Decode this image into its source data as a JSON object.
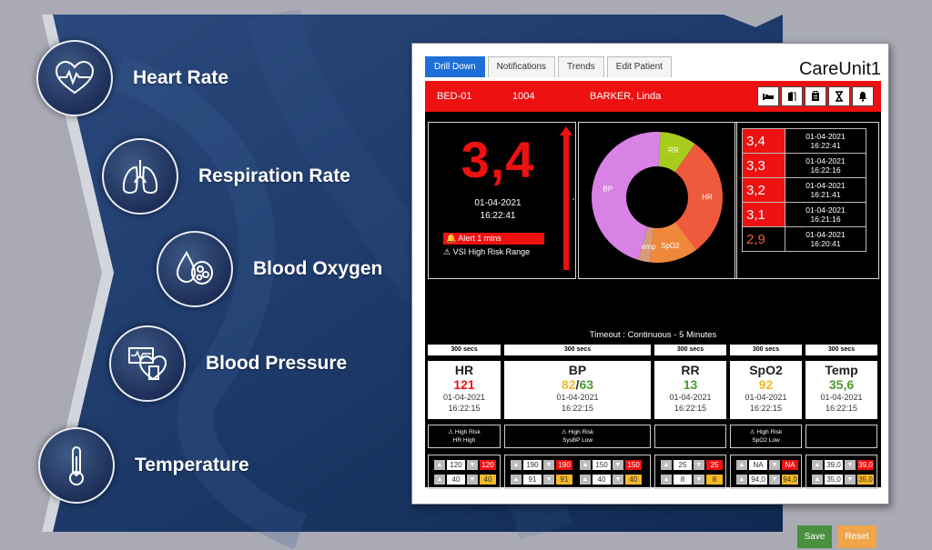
{
  "features": [
    {
      "label": "Heart Rate",
      "icon": "heart-rate-icon"
    },
    {
      "label": "Respiration Rate",
      "icon": "lungs-icon"
    },
    {
      "label": "Blood Oxygen",
      "icon": "blood-cells-icon"
    },
    {
      "label": "Blood Pressure",
      "icon": "blood-pressure-icon"
    },
    {
      "label": "Temperature",
      "icon": "thermometer-icon"
    }
  ],
  "tabs": [
    {
      "label": "Drill Down",
      "active": true
    },
    {
      "label": "Notifications",
      "active": false
    },
    {
      "label": "Trends",
      "active": false
    },
    {
      "label": "Edit Patient",
      "active": false
    }
  ],
  "brand": "CareUnit1",
  "patient": {
    "bed": "BED-01",
    "id": "1004",
    "name": "BARKER, Linda"
  },
  "header_icons": [
    "bed-icon",
    "door-exit-icon",
    "clipboard-icon",
    "hourglass-icon",
    "bell-icon"
  ],
  "score": {
    "value": "3,4",
    "date": "01-04-2021",
    "time": "16:22:41",
    "alert": "Alert 1 mins",
    "range": "VSI High Risk Range"
  },
  "donut": {
    "segments": [
      {
        "label": "RR",
        "value": 9,
        "color": "#a7cc1c"
      },
      {
        "label": "HR",
        "value": 30,
        "color": "#f05a3c"
      },
      {
        "label": "SpO2",
        "value": 12,
        "color": "#f0883c"
      },
      {
        "label": "Temp",
        "value": 3,
        "color": "#d79a7a"
      },
      {
        "label": "BP",
        "value": 46,
        "color": "#d982e6"
      }
    ]
  },
  "history": [
    {
      "value": "3,4",
      "date": "01-04-2021",
      "time": "16:22:41",
      "bg": "#ee1111",
      "fg": "#ffffff"
    },
    {
      "value": "3,3",
      "date": "01-04-2021",
      "time": "16:22:16",
      "bg": "#ee1111",
      "fg": "#ffffff"
    },
    {
      "value": "3,2",
      "date": "01-04-2021",
      "time": "16:21:41",
      "bg": "#ee1111",
      "fg": "#ffffff"
    },
    {
      "value": "3,1",
      "date": "01-04-2021",
      "time": "16:21:16",
      "bg": "#ee1111",
      "fg": "#ffffff"
    },
    {
      "value": "2,9",
      "date": "01-04-2021",
      "time": "16:20:41",
      "bg": "#000000",
      "fg": "#f05a3c"
    }
  ],
  "timeout": "Timeout : Continuous - 5 Minutes",
  "vitals": [
    {
      "secs": "300 secs",
      "name": "HR",
      "value": "121",
      "value_color": "#ee1111",
      "date": "01-04-2021",
      "time": "16:22:15",
      "risk1": "High Risk",
      "risk2": "HR High",
      "limits": [
        {
          "v1": "120",
          "b1": "120",
          "c1": "red"
        },
        {
          "v1": "40",
          "b1": "40",
          "c1": "yel"
        }
      ]
    },
    {
      "secs": "300 secs",
      "name": "BP",
      "value_a": "82",
      "value_sep": "/",
      "value_b": "63",
      "value_color_a": "#f5b927",
      "value_color_b": "#4c9a2e",
      "date": "01-04-2021",
      "time": "16:22:15",
      "risk1": "High Risk",
      "risk2": "SysBP Low",
      "limits": [
        {
          "v1": "190",
          "b1": "190",
          "c1": "red",
          "v2": "150",
          "b2": "150",
          "c2": "red"
        },
        {
          "v1": "91",
          "b1": "91",
          "c1": "yel",
          "v2": "40",
          "b2": "40",
          "c2": "yel"
        }
      ]
    },
    {
      "secs": "300 secs",
      "name": "RR",
      "value": "13",
      "value_color": "#4c9a2e",
      "date": "01-04-2021",
      "time": "16:22:15",
      "risk1": "",
      "risk2": "",
      "limits": [
        {
          "v1": "25",
          "b1": "25",
          "c1": "red"
        },
        {
          "v1": "8",
          "b1": "8",
          "c1": "yel"
        }
      ]
    },
    {
      "secs": "300 secs",
      "name": "SpO2",
      "value": "92",
      "value_color": "#f5b927",
      "date": "01-04-2021",
      "time": "16:22:15",
      "risk1": "High Risk",
      "risk2": "SpO2 Low",
      "limits": [
        {
          "v1": "NA",
          "b1": "NA",
          "c1": "red"
        },
        {
          "v1": "94,0",
          "b1": "94,0",
          "c1": "yel"
        }
      ]
    },
    {
      "secs": "300 secs",
      "name": "Temp",
      "value": "35,6",
      "value_color": "#4c9a2e",
      "date": "01-04-2021",
      "time": "16:22:15",
      "risk1": "",
      "risk2": "",
      "limits": [
        {
          "v1": "39,0",
          "b1": "39,0",
          "c1": "red"
        },
        {
          "v1": "35,0",
          "b1": "35,0",
          "c1": "yel"
        }
      ]
    }
  ],
  "buttons": {
    "save": "Save",
    "reset": "Reset",
    "save_color": "#4a8f3f",
    "reset_color": "#f0a54a"
  }
}
